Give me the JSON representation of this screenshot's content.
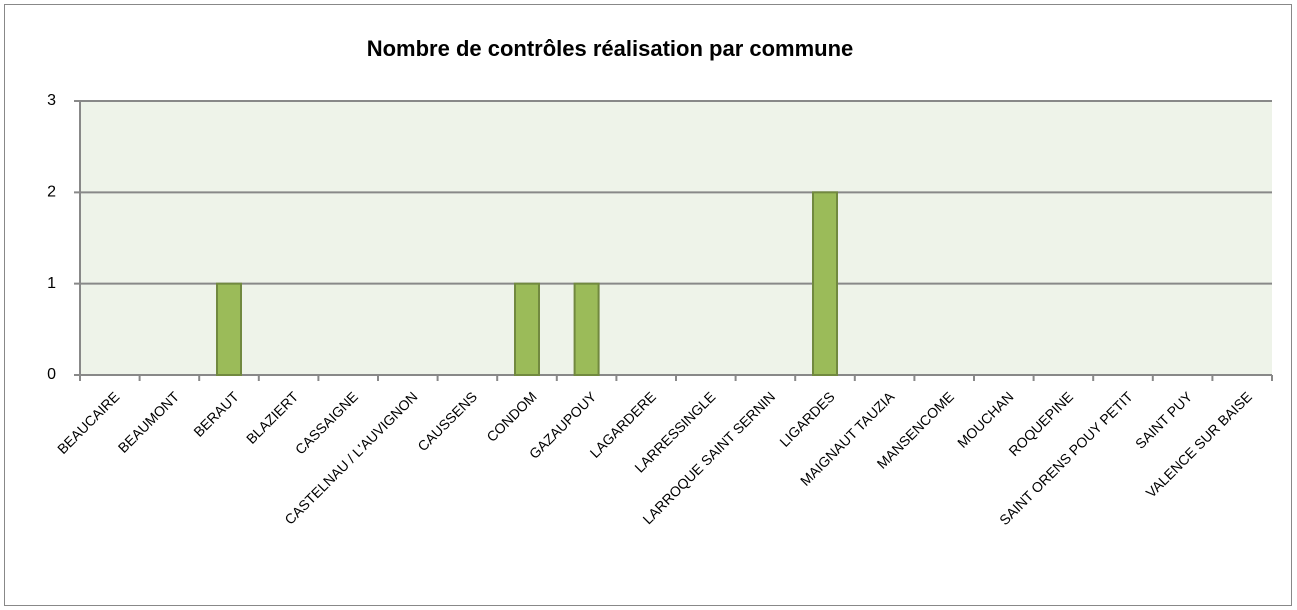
{
  "chart_data": {
    "type": "bar",
    "title": "Nombre de contrôles réalisation par commune",
    "categories": [
      "BEAUCAIRE",
      "BEAUMONT",
      "BERAUT",
      "BLAZIERT",
      "CASSAIGNE",
      "CASTELNAU / L'AUVIGNON",
      "CAUSSENS",
      "CONDOM",
      "GAZAUPOUY",
      "LAGARDERE",
      "LARRESSINGLE",
      "LARROQUE SAINT SERNIN",
      "LIGARDES",
      "MAIGNAUT TAUZIA",
      "MANSENCOME",
      "MOUCHAN",
      "ROQUEPINE",
      "SAINT ORENS POUY PETIT",
      "SAINT PUY",
      "VALENCE SUR BAISE"
    ],
    "values": [
      0,
      0,
      1,
      0,
      0,
      0,
      0,
      1,
      1,
      0,
      0,
      0,
      2,
      0,
      0,
      0,
      0,
      0,
      0,
      0
    ],
    "color": "#9bbb59",
    "ylim": [
      0,
      3
    ],
    "yticks": [
      0,
      1,
      2,
      3
    ],
    "grid": true
  }
}
